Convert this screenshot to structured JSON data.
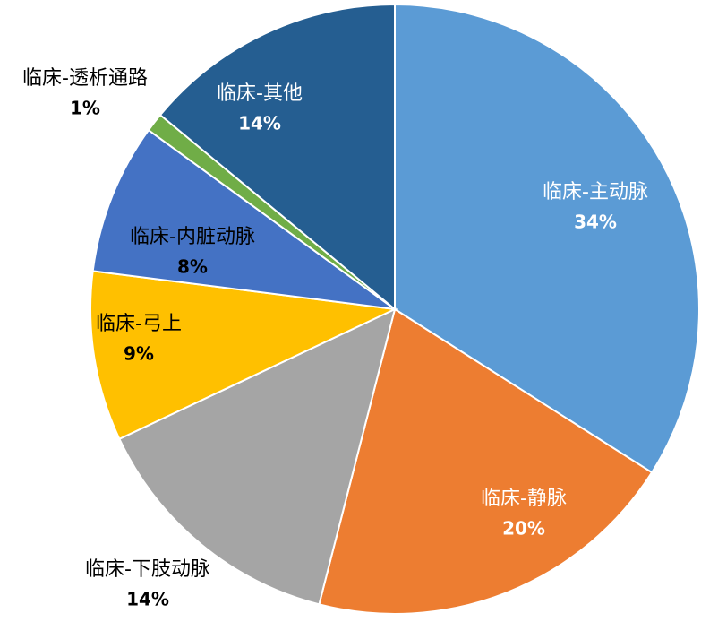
{
  "chart_data": {
    "type": "pie",
    "categories": [
      "临床-主动脉",
      "临床-静脉",
      "临床-下肢动脉",
      "临床-弓上",
      "临床-内脏动脉",
      "临床-透析通路",
      "临床-其他"
    ],
    "values": [
      34,
      20,
      14,
      9,
      8,
      1,
      14
    ],
    "value_labels": [
      "34%",
      "20%",
      "14%",
      "9%",
      "8%",
      "1%",
      "14%"
    ],
    "colors": [
      "#5b9bd5",
      "#ed7d31",
      "#a5a5a5",
      "#ffc000",
      "#4472c4",
      "#70ad47",
      "#255e91"
    ]
  }
}
